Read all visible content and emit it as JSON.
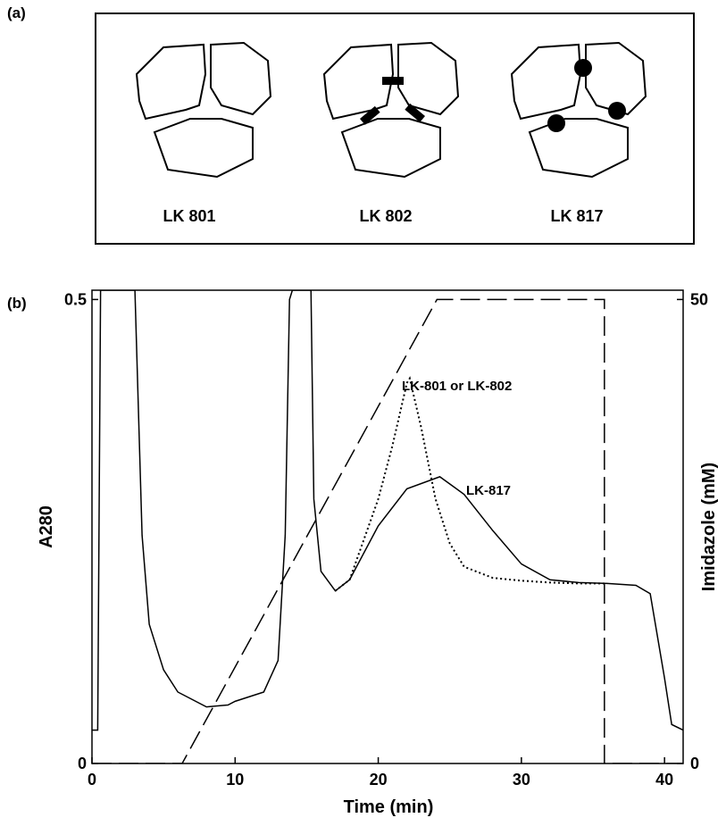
{
  "panel_a": {
    "label": "(a)",
    "items": [
      "LK 801",
      "LK 802",
      "LK 817"
    ]
  },
  "chart_data": {
    "type": "line",
    "panel_label": "(b)",
    "x_label": "Time (min)",
    "y_label": "A280",
    "y2_label": "Imidazole (mM)",
    "xlim": [
      0,
      41.3
    ],
    "xticks": [
      0,
      10,
      20,
      30,
      40
    ],
    "ylim": [
      0,
      0.51
    ],
    "yticks": [
      0,
      0.5
    ],
    "y2lim": [
      0,
      51
    ],
    "y2ticks": [
      0,
      50
    ],
    "grid": false,
    "series": [
      {
        "name": "LK-817",
        "color": "#000000",
        "style": "solid",
        "x": [
          0,
          0.4,
          0.6,
          1.0,
          3.0,
          3.5,
          4,
          5,
          6,
          8,
          9.5,
          10,
          12,
          13,
          13.5,
          13.8,
          14,
          15.3,
          15.5,
          16,
          17,
          18,
          20,
          22,
          24.3,
          26,
          28,
          30,
          32,
          34,
          36,
          38,
          39,
          40,
          40.5,
          41.3
        ],
        "values": [
          0.036,
          0.036,
          0.51,
          0.51,
          0.51,
          0.246,
          0.15,
          0.101,
          0.077,
          0.061,
          0.063,
          0.067,
          0.077,
          0.111,
          0.246,
          0.5,
          0.51,
          0.51,
          0.285,
          0.207,
          0.186,
          0.198,
          0.256,
          0.296,
          0.309,
          0.29,
          0.251,
          0.215,
          0.198,
          0.195,
          0.194,
          0.192,
          0.183,
          0.092,
          0.042,
          0.036
        ]
      },
      {
        "name": "LK-801 or LK-802",
        "color": "#000000",
        "style": "dotted",
        "x": [
          17,
          18,
          20,
          21,
          22,
          22.2,
          23,
          24,
          25,
          26,
          28,
          30,
          32,
          34,
          36
        ],
        "values": [
          0.186,
          0.198,
          0.285,
          0.343,
          0.41,
          0.415,
          0.362,
          0.285,
          0.237,
          0.212,
          0.2,
          0.197,
          0.195,
          0.194,
          0.194
        ]
      },
      {
        "color": "#000000",
        "style": "dashed",
        "axis": "y2",
        "x": [
          0,
          6.3,
          24.1,
          35.8,
          35.8,
          41.3
        ],
        "values": [
          0,
          0,
          50,
          50,
          0,
          0
        ]
      }
    ]
  }
}
